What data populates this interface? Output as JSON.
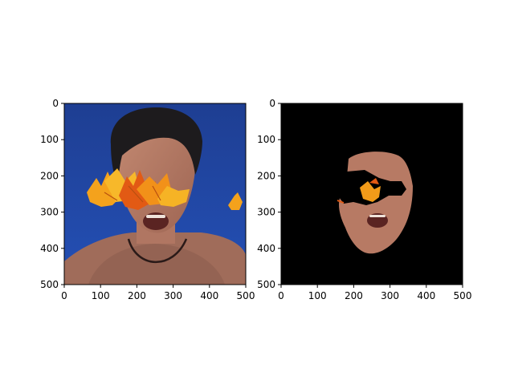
{
  "chart_data": [
    {
      "type": "image",
      "title": "",
      "xlabel": "",
      "ylabel": "",
      "xlim": [
        0,
        500
      ],
      "ylim": [
        500,
        0
      ],
      "xticks": [
        0,
        100,
        200,
        300,
        400,
        500
      ],
      "yticks": [
        0,
        100,
        200,
        300,
        400,
        500
      ],
      "content": "photo-with-leaf-overlay"
    },
    {
      "type": "image",
      "title": "",
      "xlabel": "",
      "ylabel": "",
      "xlim": [
        0,
        500
      ],
      "ylim": [
        500,
        0
      ],
      "xticks": [
        0,
        100,
        200,
        300,
        400,
        500
      ],
      "yticks": [
        0,
        100,
        200,
        300,
        400,
        500
      ],
      "content": "segmented-face-mask"
    }
  ],
  "colors": {
    "background_left": "#1f3f93",
    "mask_background": "#000000",
    "skin": "#b77a64",
    "hair": "#1d1b1d",
    "leaf_orange": "#f29b19",
    "leaf_red": "#e25a14"
  }
}
